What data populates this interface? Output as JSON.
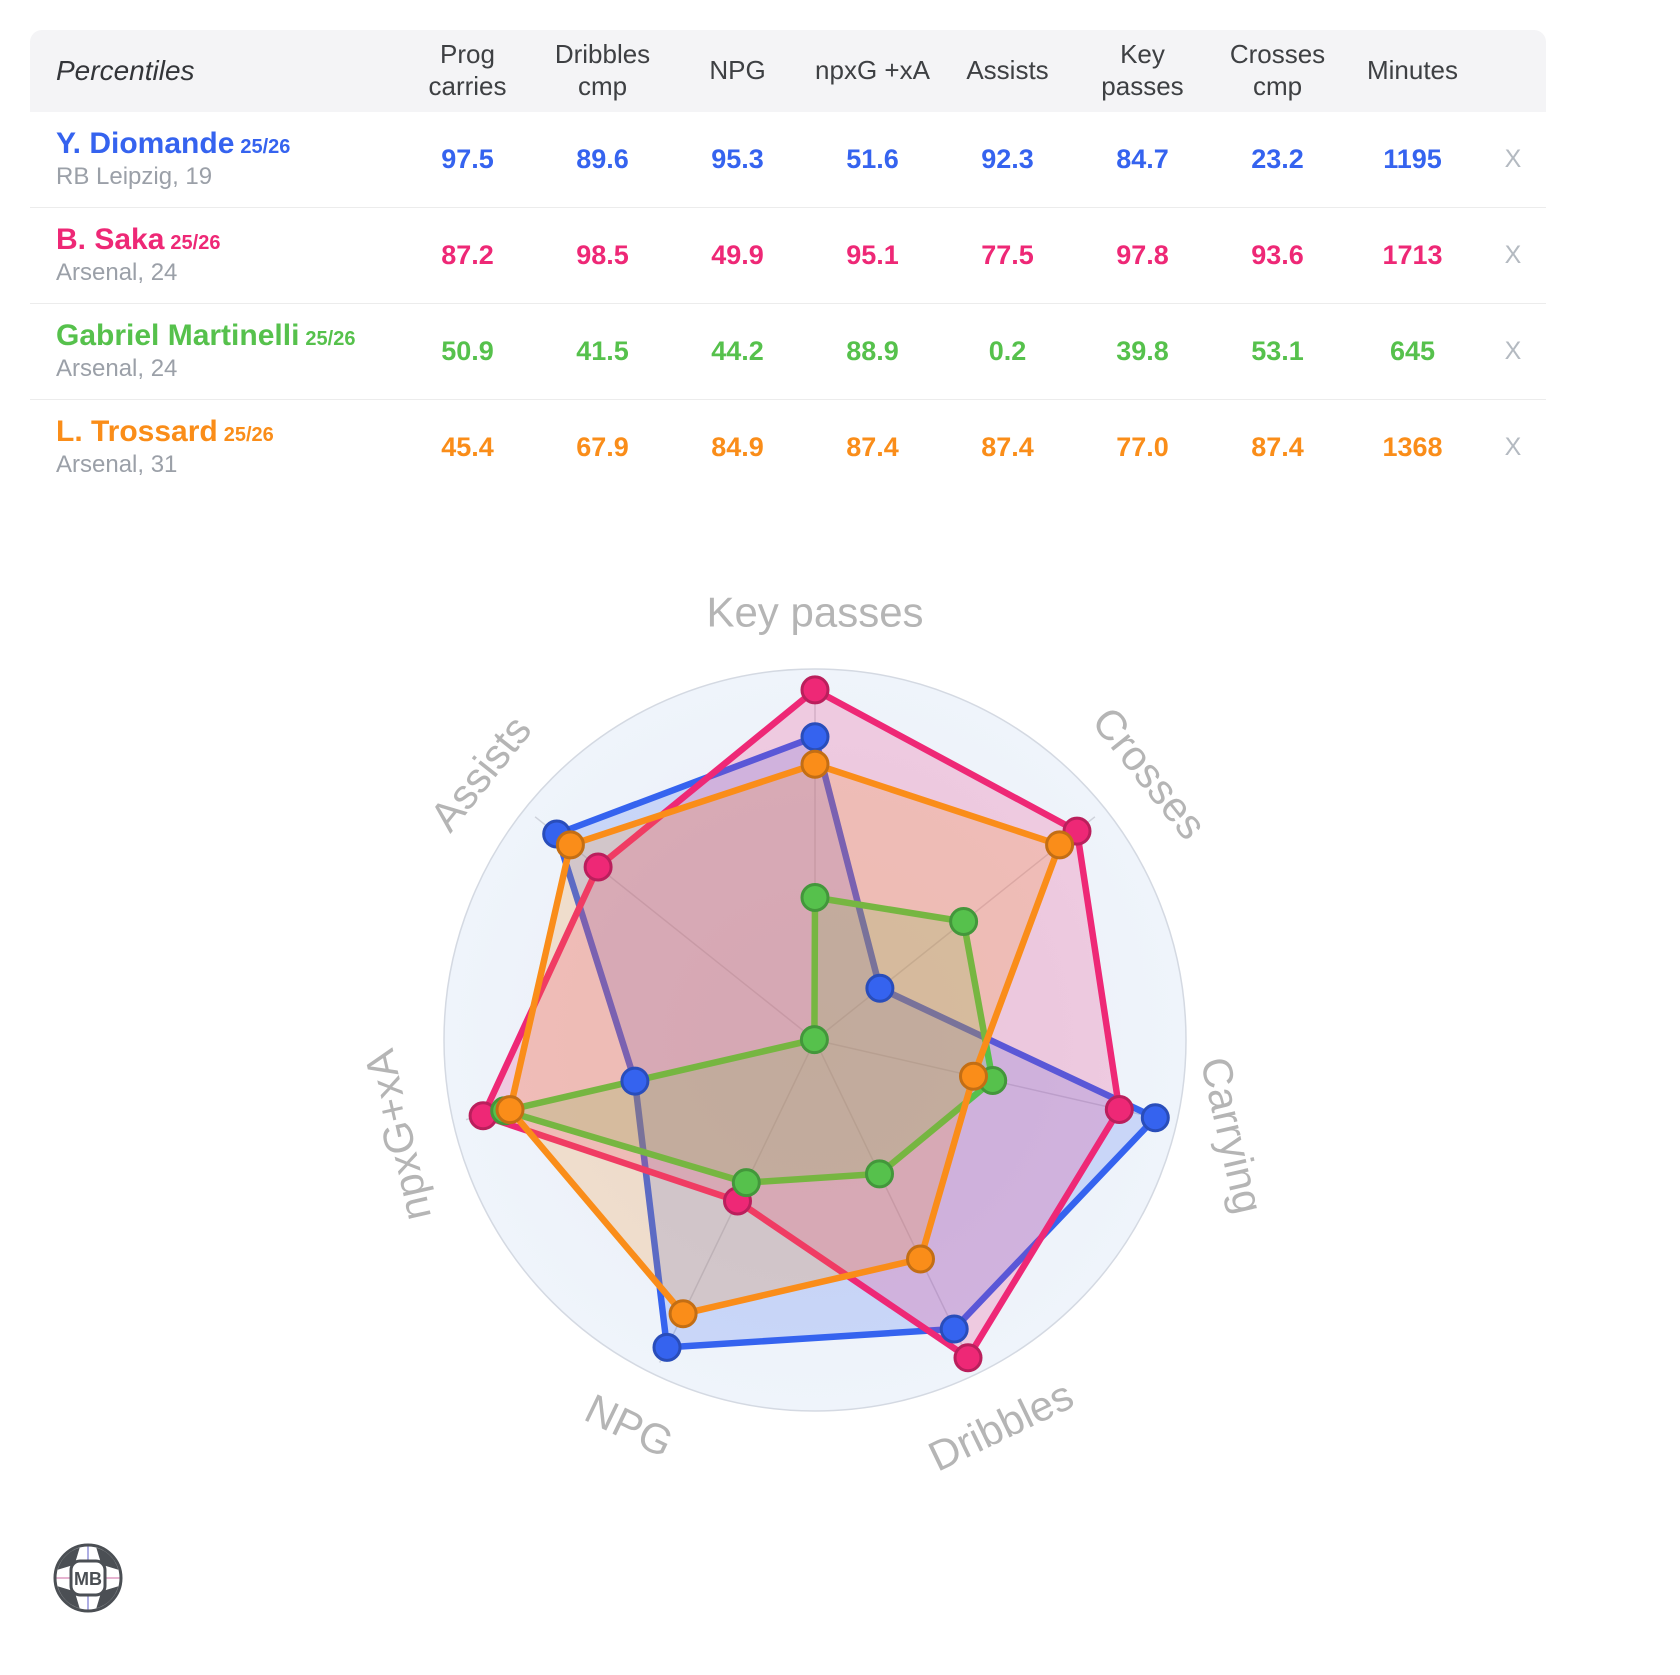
{
  "table": {
    "header": {
      "first": "Percentiles",
      "columns": [
        "Prog carries",
        "Dribbles cmp",
        "NPG",
        "npxG +xA",
        "Assists",
        "Key passes",
        "Crosses cmp",
        "Minutes"
      ]
    },
    "remove_label": "X",
    "players": [
      {
        "name": "Y. Diomande",
        "season": "25/26",
        "meta": "RB Leipzig, 19",
        "color": "#3563ef",
        "values": [
          "97.5",
          "89.6",
          "95.3",
          "51.6",
          "92.3",
          "84.7",
          "23.2",
          "1195"
        ]
      },
      {
        "name": "B. Saka",
        "season": "25/26",
        "meta": "Arsenal, 24",
        "color": "#ee2876",
        "values": [
          "87.2",
          "98.5",
          "49.9",
          "95.1",
          "77.5",
          "97.8",
          "93.6",
          "1713"
        ]
      },
      {
        "name": "Gabriel Martinelli",
        "season": "25/26",
        "meta": "Arsenal, 24",
        "color": "#56c14c",
        "values": [
          "50.9",
          "41.5",
          "44.2",
          "88.9",
          "0.2",
          "39.8",
          "53.1",
          "645"
        ]
      },
      {
        "name": "L. Trossard",
        "season": "25/26",
        "meta": "Arsenal, 31",
        "color": "#fa8d19",
        "values": [
          "45.4",
          "67.9",
          "84.9",
          "87.4",
          "87.4",
          "77.0",
          "87.4",
          "1368"
        ]
      }
    ]
  },
  "chart_data": {
    "type": "radar",
    "axes": [
      "Key passes",
      "Crosses",
      "Carrying",
      "Dribbles",
      "NPG",
      "npxG+xA",
      "Assists"
    ],
    "scale": [
      0,
      100
    ],
    "grid": "spokes-and-outer-circle",
    "legend": "none (colors match table rows)",
    "axis_label_color": "#b5b5b5",
    "background_disc_color": "#edf2f9",
    "series": [
      {
        "name": "Y. Diomande 25/26",
        "color": "#3563ef",
        "values": [
          84.7,
          23.2,
          97.5,
          89.6,
          95.3,
          51.6,
          92.3
        ]
      },
      {
        "name": "B. Saka 25/26",
        "color": "#ee2876",
        "values": [
          97.8,
          93.6,
          87.2,
          98.5,
          49.9,
          95.1,
          77.5
        ]
      },
      {
        "name": "Gabriel Martinelli 25/26",
        "color": "#56c14c",
        "values": [
          39.8,
          53.1,
          50.9,
          41.5,
          44.2,
          88.9,
          0.2
        ]
      },
      {
        "name": "L. Trossard 25/26",
        "color": "#fa8d19",
        "values": [
          77.0,
          87.4,
          45.4,
          67.9,
          84.9,
          87.4,
          87.4
        ]
      }
    ]
  },
  "logo": {
    "text": "MB"
  }
}
